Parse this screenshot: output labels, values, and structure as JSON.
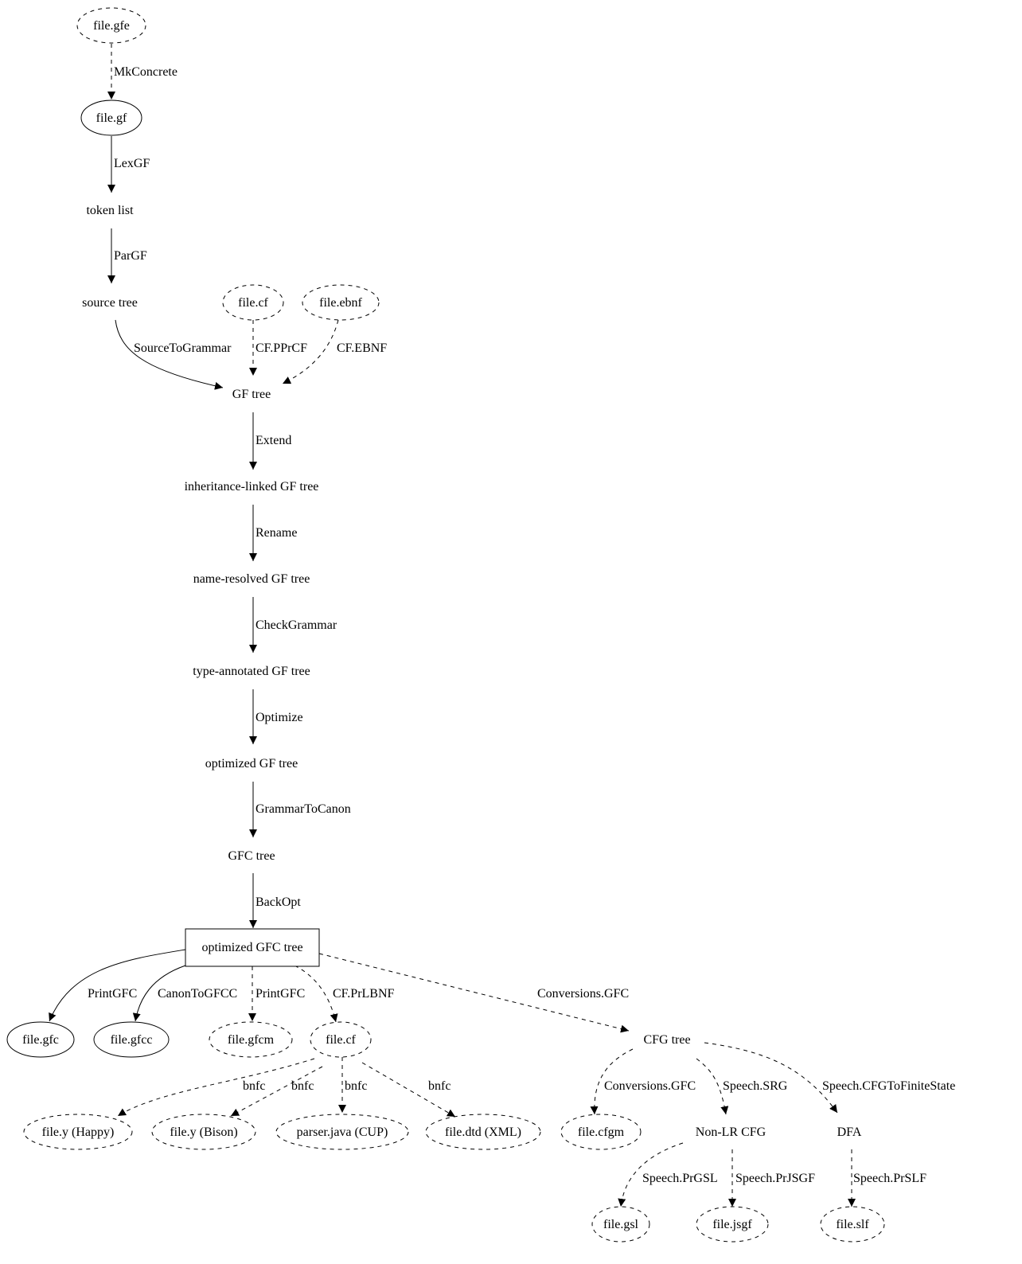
{
  "colors": {
    "stroke": "#000000",
    "background": "#ffffff"
  },
  "nodes": [
    {
      "id": "gfe",
      "label": "file.gfe",
      "shape": "ellipse",
      "style": "dashed"
    },
    {
      "id": "gf",
      "label": "file.gf",
      "shape": "ellipse",
      "style": "solid"
    },
    {
      "id": "tokens",
      "label": "token list",
      "shape": "plaintext",
      "style": "solid"
    },
    {
      "id": "source",
      "label": "source tree",
      "shape": "plaintext",
      "style": "solid"
    },
    {
      "id": "cf_in",
      "label": "file.cf",
      "shape": "ellipse",
      "style": "dashed"
    },
    {
      "id": "ebnf",
      "label": "file.ebnf",
      "shape": "ellipse",
      "style": "dashed"
    },
    {
      "id": "gftree",
      "label": "GF tree",
      "shape": "plaintext",
      "style": "solid"
    },
    {
      "id": "inh",
      "label": "inheritance-linked GF tree",
      "shape": "plaintext",
      "style": "solid"
    },
    {
      "id": "named",
      "label": "name-resolved GF tree",
      "shape": "plaintext",
      "style": "solid"
    },
    {
      "id": "typed",
      "label": "type-annotated GF tree",
      "shape": "plaintext",
      "style": "solid"
    },
    {
      "id": "optgf",
      "label": "optimized GF tree",
      "shape": "plaintext",
      "style": "solid"
    },
    {
      "id": "gfc",
      "label": "GFC tree",
      "shape": "plaintext",
      "style": "solid"
    },
    {
      "id": "optgfc",
      "label": "optimized GFC tree",
      "shape": "box",
      "style": "solid"
    },
    {
      "id": "fgfc",
      "label": "file.gfc",
      "shape": "ellipse",
      "style": "solid"
    },
    {
      "id": "fgfcc",
      "label": "file.gfcc",
      "shape": "ellipse",
      "style": "solid"
    },
    {
      "id": "fgfcm",
      "label": "file.gfcm",
      "shape": "ellipse",
      "style": "dashed"
    },
    {
      "id": "cf_out",
      "label": "file.cf",
      "shape": "ellipse",
      "style": "dashed"
    },
    {
      "id": "cfg",
      "label": "CFG tree",
      "shape": "plaintext",
      "style": "solid"
    },
    {
      "id": "happy",
      "label": "file.y (Happy)",
      "shape": "ellipse",
      "style": "dashed"
    },
    {
      "id": "bison",
      "label": "file.y (Bison)",
      "shape": "ellipse",
      "style": "dashed"
    },
    {
      "id": "cup",
      "label": "parser.java (CUP)",
      "shape": "ellipse",
      "style": "dashed"
    },
    {
      "id": "dtd",
      "label": "file.dtd (XML)",
      "shape": "ellipse",
      "style": "dashed"
    },
    {
      "id": "cfgm",
      "label": "file.cfgm",
      "shape": "ellipse",
      "style": "dashed"
    },
    {
      "id": "nonlr",
      "label": "Non-LR CFG",
      "shape": "plaintext",
      "style": "solid"
    },
    {
      "id": "dfa",
      "label": "DFA",
      "shape": "plaintext",
      "style": "solid"
    },
    {
      "id": "gsl",
      "label": "file.gsl",
      "shape": "ellipse",
      "style": "dashed"
    },
    {
      "id": "jsgf",
      "label": "file.jsgf",
      "shape": "ellipse",
      "style": "dashed"
    },
    {
      "id": "slf",
      "label": "file.slf",
      "shape": "ellipse",
      "style": "dashed"
    }
  ],
  "edges": [
    {
      "from": "gfe",
      "to": "gf",
      "label": "MkConcrete",
      "style": "dashed"
    },
    {
      "from": "gf",
      "to": "tokens",
      "label": "LexGF",
      "style": "solid"
    },
    {
      "from": "tokens",
      "to": "source",
      "label": "ParGF",
      "style": "solid"
    },
    {
      "from": "source",
      "to": "gftree",
      "label": "SourceToGrammar",
      "style": "solid"
    },
    {
      "from": "cf_in",
      "to": "gftree",
      "label": "CF.PPrCF",
      "style": "dashed"
    },
    {
      "from": "ebnf",
      "to": "gftree",
      "label": "CF.EBNF",
      "style": "dashed"
    },
    {
      "from": "gftree",
      "to": "inh",
      "label": "Extend",
      "style": "solid"
    },
    {
      "from": "inh",
      "to": "named",
      "label": "Rename",
      "style": "solid"
    },
    {
      "from": "named",
      "to": "typed",
      "label": "CheckGrammar",
      "style": "solid"
    },
    {
      "from": "typed",
      "to": "optgf",
      "label": "Optimize",
      "style": "solid"
    },
    {
      "from": "optgf",
      "to": "gfc",
      "label": "GrammarToCanon",
      "style": "solid"
    },
    {
      "from": "gfc",
      "to": "optgfc",
      "label": "BackOpt",
      "style": "solid"
    },
    {
      "from": "optgfc",
      "to": "fgfc",
      "label": "PrintGFC",
      "style": "solid"
    },
    {
      "from": "optgfc",
      "to": "fgfcc",
      "label": "CanonToGFCC",
      "style": "solid"
    },
    {
      "from": "optgfc",
      "to": "fgfcm",
      "label": "PrintGFC",
      "style": "dashed"
    },
    {
      "from": "optgfc",
      "to": "cf_out",
      "label": "CF.PrLBNF",
      "style": "dashed"
    },
    {
      "from": "optgfc",
      "to": "cfg",
      "label": "Conversions.GFC",
      "style": "dashed"
    },
    {
      "from": "cf_out",
      "to": "happy",
      "label": "bnfc",
      "style": "dashed"
    },
    {
      "from": "cf_out",
      "to": "bison",
      "label": "bnfc",
      "style": "dashed"
    },
    {
      "from": "cf_out",
      "to": "cup",
      "label": "bnfc",
      "style": "dashed"
    },
    {
      "from": "cf_out",
      "to": "dtd",
      "label": "bnfc",
      "style": "dashed"
    },
    {
      "from": "cfg",
      "to": "cfgm",
      "label": "Conversions.GFC",
      "style": "dashed"
    },
    {
      "from": "cfg",
      "to": "nonlr",
      "label": "Speech.SRG",
      "style": "dashed"
    },
    {
      "from": "cfg",
      "to": "dfa",
      "label": "Speech.CFGToFiniteState",
      "style": "dashed"
    },
    {
      "from": "nonlr",
      "to": "gsl",
      "label": "Speech.PrGSL",
      "style": "dashed"
    },
    {
      "from": "nonlr",
      "to": "jsgf",
      "label": "Speech.PrJSGF",
      "style": "dashed"
    },
    {
      "from": "dfa",
      "to": "slf",
      "label": "Speech.PrSLF",
      "style": "dashed"
    }
  ]
}
